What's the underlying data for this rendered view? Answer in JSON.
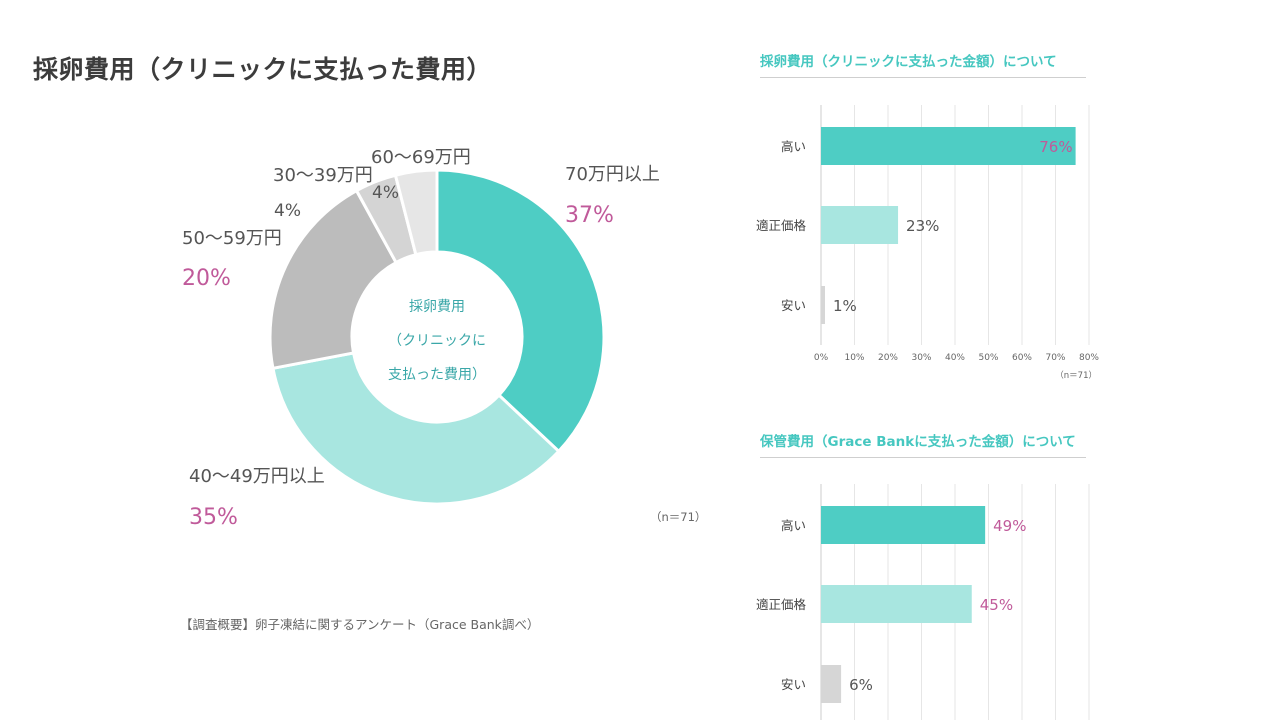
{
  "main_title": "採卵費用（クリニックに支払った費用）",
  "note": "【調査概要】卵子凍結に関するアンケート（Grace Bank調べ）",
  "chart_data": [
    {
      "type": "pie",
      "variant": "donut",
      "center_label": [
        "採卵費用",
        "（クリニックに",
        "支払った費用）"
      ],
      "slices": [
        {
          "label": "70万円以上",
          "value": 37,
          "value_label": "37%",
          "color": "#4ecdc4"
        },
        {
          "label": "40〜49万円以上",
          "value": 35,
          "value_label": "35%",
          "color": "#a8e6e0"
        },
        {
          "label": "50〜59万円",
          "value": 20,
          "value_label": "20%",
          "color": "#bcbcbc"
        },
        {
          "label": "30〜39万円",
          "value": 4,
          "value_label": "4%",
          "color": "#d4d4d4"
        },
        {
          "label": "60〜69万円",
          "value": 4,
          "value_label": "4%",
          "color": "#e6e6e6"
        }
      ],
      "sample_size": "（n＝71）",
      "label_color": "#555555",
      "value_color": "#c05a9a"
    },
    {
      "type": "bar",
      "orientation": "horizontal",
      "title": "採卵費用（クリニックに支払った金額）について",
      "categories": [
        "高い",
        "適正価格",
        "安い"
      ],
      "values": [
        76,
        23,
        1
      ],
      "value_labels": [
        "76%",
        "23%",
        "1%"
      ],
      "colors": [
        "#4ecdc4",
        "#a8e6e0",
        "#d6d6d6"
      ],
      "xlim": [
        0,
        80
      ],
      "xticks": [
        "0%",
        "10%",
        "20%",
        "30%",
        "40%",
        "50%",
        "60%",
        "70%",
        "80%"
      ],
      "sample_size": "（n＝71）",
      "grid": true
    },
    {
      "type": "bar",
      "orientation": "horizontal",
      "title": "保管費用（Grace Bankに支払った金額）について",
      "categories": [
        "高い",
        "適正価格",
        "安い"
      ],
      "values": [
        49,
        45,
        6
      ],
      "value_labels": [
        "49%",
        "45%",
        "6%"
      ],
      "colors": [
        "#4ecdc4",
        "#a8e6e0",
        "#d6d6d6"
      ],
      "xlim": [
        0,
        80
      ],
      "grid": true
    }
  ]
}
